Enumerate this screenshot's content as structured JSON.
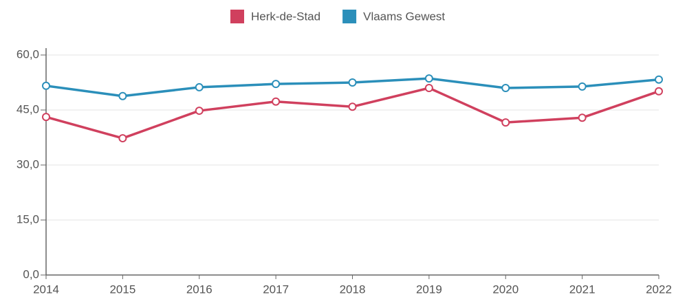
{
  "chart_data": {
    "type": "line",
    "categories": [
      "2014",
      "2015",
      "2016",
      "2017",
      "2018",
      "2019",
      "2020",
      "2021",
      "2022"
    ],
    "series": [
      {
        "name": "Herk-de-Stad",
        "color": "#d0405e",
        "values": [
          43.1,
          37.3,
          44.8,
          47.3,
          45.9,
          51.0,
          41.6,
          42.9,
          50.1
        ]
      },
      {
        "name": "Vlaams Gewest",
        "color": "#2b8fba",
        "values": [
          51.6,
          48.8,
          51.2,
          52.1,
          52.5,
          53.6,
          51.0,
          51.4,
          53.3
        ]
      }
    ],
    "ylim": [
      0,
      60
    ],
    "yticks": [
      {
        "value": 0,
        "label": "0,0"
      },
      {
        "value": 15,
        "label": "15,0"
      },
      {
        "value": 30,
        "label": "30,0"
      },
      {
        "value": 45,
        "label": "45,0"
      },
      {
        "value": 60,
        "label": "60,0"
      }
    ],
    "grid": true,
    "legend": "top"
  }
}
